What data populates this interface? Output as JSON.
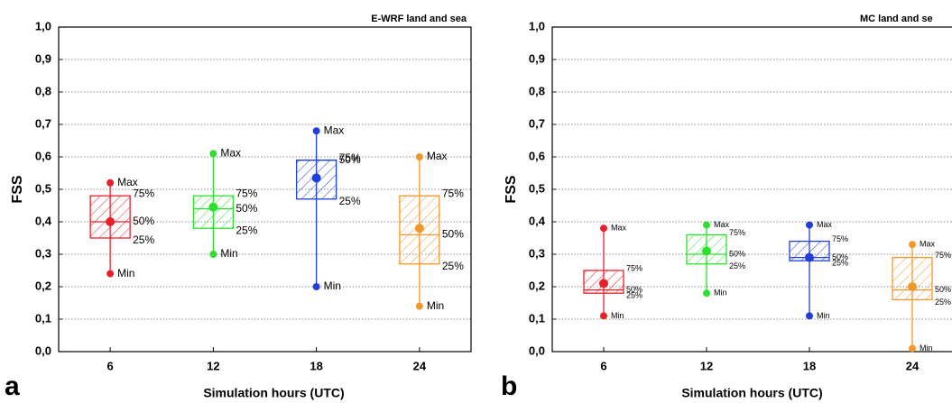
{
  "chart_data": [
    {
      "type": "box",
      "title": "E-WRF land and sea",
      "panel_label": "a",
      "xlabel": "Simulation hours (UTC)",
      "ylabel": "FSS",
      "categories": [
        "6",
        "12",
        "18",
        "24"
      ],
      "colors": [
        "#e8202a",
        "#2ee02e",
        "#1f3fd8",
        "#f5962a"
      ],
      "min": [
        0.24,
        0.3,
        0.2,
        0.14
      ],
      "q1": [
        0.35,
        0.38,
        0.47,
        0.27
      ],
      "median": [
        0.4,
        0.44,
        0.59,
        0.36
      ],
      "q3": [
        0.48,
        0.48,
        0.59,
        0.48
      ],
      "max": [
        0.52,
        0.61,
        0.68,
        0.6
      ],
      "mean": [
        0.4,
        0.445,
        0.535,
        0.38
      ],
      "stat_labels": {
        "max": "Max",
        "q3": "75%",
        "median": "50%",
        "q1": "25%",
        "min": "Min"
      },
      "ylim": [
        0,
        1
      ],
      "yticks": [
        {
          "value": 0,
          "label": "0,0"
        },
        {
          "value": 0.1,
          "label": "0,1"
        },
        {
          "value": 0.2,
          "label": "0,2"
        },
        {
          "value": 0.3,
          "label": "0,3"
        },
        {
          "value": 0.4,
          "label": "0,4"
        },
        {
          "value": 0.5,
          "label": "0,5"
        },
        {
          "value": 0.6,
          "label": "0,6"
        },
        {
          "value": 0.7,
          "label": "0,7"
        },
        {
          "value": 0.8,
          "label": "0,8"
        },
        {
          "value": 0.9,
          "label": "0,9"
        },
        {
          "value": 1,
          "label": "1,0"
        }
      ],
      "grid": true
    },
    {
      "type": "box",
      "title": "MC land and se",
      "panel_label": "b",
      "xlabel": "Simulation hours (UTC)",
      "ylabel": "FSS",
      "categories": [
        "6",
        "12",
        "18",
        "24"
      ],
      "colors": [
        "#e8202a",
        "#2ee02e",
        "#1f3fd8",
        "#f5962a"
      ],
      "min": [
        0.11,
        0.18,
        0.11,
        0.01
      ],
      "q1": [
        0.18,
        0.27,
        0.28,
        0.16
      ],
      "median": [
        0.19,
        0.3,
        0.29,
        0.19
      ],
      "q3": [
        0.25,
        0.36,
        0.34,
        0.29
      ],
      "max": [
        0.38,
        0.39,
        0.39,
        0.33
      ],
      "mean": [
        0.21,
        0.31,
        0.29,
        0.2
      ],
      "stat_labels": {
        "max": "Max",
        "q3": "75%",
        "median": "50%",
        "q1": "25%",
        "min": "Min"
      },
      "ylim": [
        0,
        1
      ],
      "yticks": [
        {
          "value": 0,
          "label": "0,0"
        },
        {
          "value": 0.1,
          "label": "0,1"
        },
        {
          "value": 0.2,
          "label": "0,2"
        },
        {
          "value": 0.3,
          "label": "0,3"
        },
        {
          "value": 0.4,
          "label": "0,4"
        },
        {
          "value": 0.5,
          "label": "0,5"
        },
        {
          "value": 0.6,
          "label": "0,6"
        },
        {
          "value": 0.7,
          "label": "0,7"
        },
        {
          "value": 0.8,
          "label": "0,8"
        },
        {
          "value": 0.9,
          "label": "0,9"
        },
        {
          "value": 1,
          "label": "1,0"
        }
      ],
      "grid": true
    }
  ]
}
